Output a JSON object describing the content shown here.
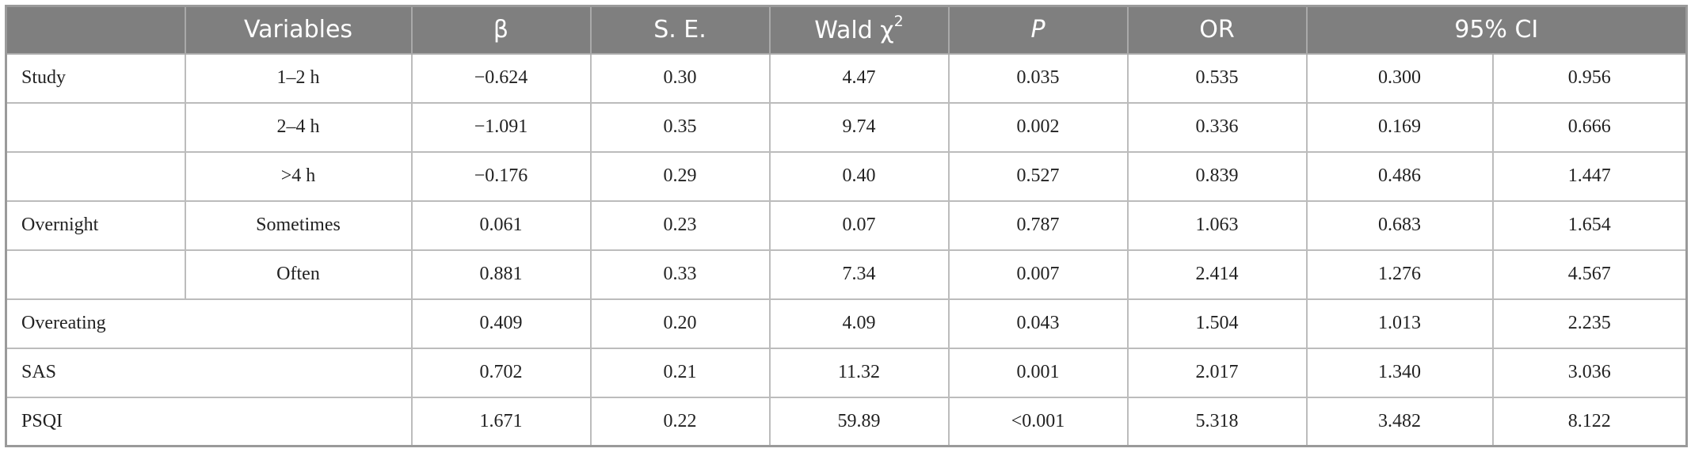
{
  "table": {
    "headers": {
      "variables": "Variables",
      "beta": "β",
      "se": "S. E.",
      "wald": "Wald χ",
      "wald_sup": "2",
      "p": "P",
      "or": "OR",
      "ci": "95% CI"
    },
    "rows": [
      {
        "group": "Study",
        "level": "1–2 h",
        "beta": "−0.624",
        "se": "0.30",
        "wald": "4.47",
        "p": "0.035",
        "or": "0.535",
        "ci_low": "0.300",
        "ci_high": "0.956"
      },
      {
        "group": "",
        "level": "2–4 h",
        "beta": "−1.091",
        "se": "0.35",
        "wald": "9.74",
        "p": "0.002",
        "or": "0.336",
        "ci_low": "0.169",
        "ci_high": "0.666"
      },
      {
        "group": "",
        "level": ">4 h",
        "beta": "−0.176",
        "se": "0.29",
        "wald": "0.40",
        "p": "0.527",
        "or": "0.839",
        "ci_low": "0.486",
        "ci_high": "1.447"
      },
      {
        "group": "Overnight",
        "level": "Sometimes",
        "beta": "0.061",
        "se": "0.23",
        "wald": "0.07",
        "p": "0.787",
        "or": "1.063",
        "ci_low": "0.683",
        "ci_high": "1.654"
      },
      {
        "group": "",
        "level": "Often",
        "beta": "0.881",
        "se": "0.33",
        "wald": "7.34",
        "p": "0.007",
        "or": "2.414",
        "ci_low": "1.276",
        "ci_high": "4.567"
      },
      {
        "group": "Overeating",
        "level": "",
        "beta": "0.409",
        "se": "0.20",
        "wald": "4.09",
        "p": "0.043",
        "or": "1.504",
        "ci_low": "1.013",
        "ci_high": "2.235"
      },
      {
        "group": "SAS",
        "level": "",
        "beta": "0.702",
        "se": "0.21",
        "wald": "11.32",
        "p": "0.001",
        "or": "2.017",
        "ci_low": "1.340",
        "ci_high": "3.036"
      },
      {
        "group": "PSQI",
        "level": "",
        "beta": "1.671",
        "se": "0.22",
        "wald": "59.89",
        "p": "<0.001",
        "or": "5.318",
        "ci_low": "3.482",
        "ci_high": "8.122"
      }
    ]
  }
}
